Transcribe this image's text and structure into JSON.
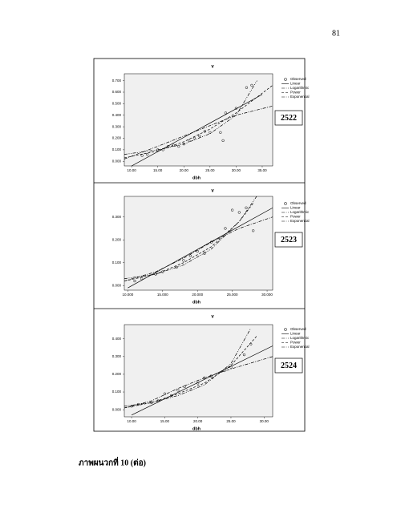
{
  "page_number": "81",
  "caption": "ภาพผนวกที่ 10 (ต่อ)",
  "chart_data": [
    {
      "type": "scatter",
      "title": "v",
      "x_label": "dbh",
      "annotation": "2522",
      "xlim": [
        8.6,
        37
      ],
      "ylim": [
        -0.04,
        0.76
      ],
      "xticks": [
        {
          "value": 10,
          "label": "10.00"
        },
        {
          "value": 15,
          "label": "15.00"
        },
        {
          "value": 20,
          "label": "20.00"
        },
        {
          "value": 25,
          "label": "25.00"
        },
        {
          "value": 30,
          "label": "30.00"
        },
        {
          "value": 35,
          "label": "35.00"
        }
      ],
      "yticks": [
        {
          "value": 0,
          "label": "0.000"
        },
        {
          "value": 0.1,
          "label": "0.100"
        },
        {
          "value": 0.2,
          "label": "0.200"
        },
        {
          "value": 0.3,
          "label": "0.300"
        },
        {
          "value": 0.4,
          "label": "0.400"
        },
        {
          "value": 0.5,
          "label": "0.500"
        },
        {
          "value": 0.6,
          "label": "0.600"
        },
        {
          "value": 0.7,
          "label": "0.700"
        }
      ],
      "series": [
        {
          "name": "Observed",
          "color": "#000000",
          "style": "markers",
          "x": [
            12,
            13,
            15,
            16,
            17,
            18,
            19,
            20,
            21,
            22,
            23,
            24,
            25,
            27,
            27.5,
            28,
            30,
            32,
            33
          ],
          "values": [
            0.05,
            0.06,
            0.1,
            0.1,
            0.13,
            0.14,
            0.13,
            0.15,
            0.18,
            0.2,
            0.22,
            0.26,
            0.25,
            0.25,
            0.18,
            0.42,
            0.46,
            0.64,
            0.66
          ]
        },
        {
          "name": "Linear",
          "color": "#000000",
          "style": "solid",
          "x": [
            10,
            35
          ],
          "values": [
            -0.04,
            0.58
          ]
        },
        {
          "name": "Logarithmic",
          "color": "#000000",
          "style": "dashdot",
          "x": [
            8.6,
            15,
            20,
            25,
            30,
            37
          ],
          "values": [
            0.02,
            0.13,
            0.22,
            0.31,
            0.4,
            0.48
          ]
        },
        {
          "name": "Power",
          "color": "#000000",
          "style": "dash",
          "x": [
            8.6,
            15,
            20,
            25,
            30,
            37
          ],
          "values": [
            0.03,
            0.09,
            0.17,
            0.28,
            0.42,
            0.66
          ]
        },
        {
          "name": "Exponential",
          "color": "#000000",
          "style": "dashdotdot",
          "x": [
            8.6,
            15,
            20,
            25,
            30,
            34
          ],
          "values": [
            0.06,
            0.1,
            0.15,
            0.24,
            0.4,
            0.7
          ]
        }
      ]
    },
    {
      "type": "scatter",
      "title": "v",
      "x_label": "dbh",
      "annotation": "2523",
      "xlim": [
        9.5,
        30.8
      ],
      "ylim": [
        -0.02,
        0.39
      ],
      "xticks": [
        {
          "value": 10,
          "label": "10.000"
        },
        {
          "value": 15,
          "label": "15.000"
        },
        {
          "value": 20,
          "label": "20.000"
        },
        {
          "value": 25,
          "label": "25.000"
        },
        {
          "value": 30,
          "label": "30.000"
        }
      ],
      "yticks": [
        {
          "value": 0,
          "label": "0.000"
        },
        {
          "value": 0.1,
          "label": "0.100"
        },
        {
          "value": 0.2,
          "label": "0.200"
        },
        {
          "value": 0.3,
          "label": "0.300"
        }
      ],
      "series": [
        {
          "name": "Observed",
          "color": "#000000",
          "style": "markers",
          "x": [
            11,
            12,
            14,
            15,
            17,
            18,
            19,
            20,
            21,
            22,
            24,
            25,
            26,
            27,
            28
          ],
          "values": [
            0.02,
            0.03,
            0.05,
            0.06,
            0.08,
            0.11,
            0.13,
            0.15,
            0.14,
            0.19,
            0.25,
            0.33,
            0.32,
            0.34,
            0.24
          ]
        },
        {
          "name": "Linear",
          "color": "#000000",
          "style": "solid",
          "x": [
            10,
            30.8
          ],
          "values": [
            -0.01,
            0.34
          ]
        },
        {
          "name": "Logarithmic",
          "color": "#000000",
          "style": "dashdot",
          "x": [
            9.5,
            14,
            18,
            22,
            26,
            30.8
          ],
          "values": [
            0.02,
            0.06,
            0.12,
            0.19,
            0.25,
            0.3
          ]
        },
        {
          "name": "Power",
          "color": "#000000",
          "style": "dash",
          "x": [
            9.5,
            14,
            18,
            22,
            26,
            28
          ],
          "values": [
            0.02,
            0.05,
            0.1,
            0.17,
            0.28,
            0.36
          ]
        },
        {
          "name": "Exponential",
          "color": "#000000",
          "style": "dashdotdot",
          "x": [
            9.5,
            14,
            18,
            22,
            26,
            28.5
          ],
          "values": [
            0.03,
            0.05,
            0.09,
            0.16,
            0.28,
            0.39
          ]
        }
      ]
    },
    {
      "type": "scatter",
      "title": "v",
      "x_label": "dbh",
      "annotation": "2524",
      "xlim": [
        8.9,
        31.3
      ],
      "ylim": [
        -0.04,
        0.48
      ],
      "xticks": [
        {
          "value": 10,
          "label": "10.00"
        },
        {
          "value": 15,
          "label": "15.00"
        },
        {
          "value": 20,
          "label": "20.00"
        },
        {
          "value": 25,
          "label": "25.00"
        },
        {
          "value": 30,
          "label": "30.00"
        }
      ],
      "yticks": [
        {
          "value": 0,
          "label": "0.000"
        },
        {
          "value": 0.1,
          "label": "0.100"
        },
        {
          "value": 0.2,
          "label": "0.200"
        },
        {
          "value": 0.3,
          "label": "0.300"
        },
        {
          "value": 0.4,
          "label": "0.400"
        }
      ],
      "series": [
        {
          "name": "Observed",
          "color": "#000000",
          "style": "markers",
          "x": [
            10,
            11,
            13,
            14,
            15,
            16,
            17,
            18,
            20,
            21,
            22,
            24,
            25,
            27,
            28
          ],
          "values": [
            0.02,
            0.03,
            0.04,
            0.05,
            0.09,
            0.08,
            0.11,
            0.13,
            0.15,
            0.18,
            0.19,
            0.22,
            0.24,
            0.31,
            0.37
          ]
        },
        {
          "name": "Linear",
          "color": "#000000",
          "style": "solid",
          "x": [
            10,
            31.3
          ],
          "values": [
            -0.03,
            0.36
          ]
        },
        {
          "name": "Logarithmic",
          "color": "#000000",
          "style": "dashdot",
          "x": [
            8.9,
            13,
            17,
            21,
            25,
            31.3
          ],
          "values": [
            0.01,
            0.05,
            0.12,
            0.18,
            0.23,
            0.3
          ]
        },
        {
          "name": "Power",
          "color": "#000000",
          "style": "dash",
          "x": [
            8.9,
            13,
            17,
            21,
            25,
            29
          ],
          "values": [
            0.01,
            0.04,
            0.09,
            0.15,
            0.25,
            0.42
          ]
        },
        {
          "name": "Exponential",
          "color": "#000000",
          "style": "dashdotdot",
          "x": [
            8.9,
            13,
            17,
            21,
            25,
            28
          ],
          "values": [
            0.02,
            0.04,
            0.08,
            0.14,
            0.26,
            0.46
          ]
        }
      ]
    }
  ]
}
